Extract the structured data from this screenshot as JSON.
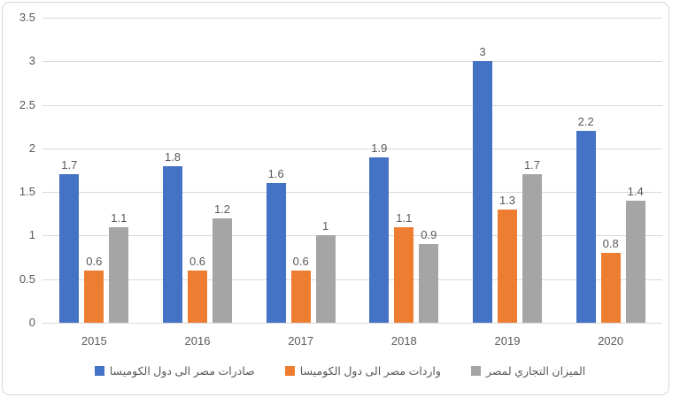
{
  "chart_data": {
    "type": "bar",
    "title": "",
    "categories": [
      "2015",
      "2016",
      "2017",
      "2018",
      "2019",
      "2020"
    ],
    "series": [
      {
        "name": "صادرات مصر الى دول الكوميسا",
        "color": "#4472C4",
        "values": [
          1.7,
          1.8,
          1.6,
          1.9,
          3,
          2.2
        ]
      },
      {
        "name": "واردات مصر الى دول الكوميسا",
        "color": "#ED7D31",
        "values": [
          0.6,
          0.6,
          0.6,
          1.1,
          1.3,
          0.8
        ]
      },
      {
        "name": "الميزان التجاري لمصر",
        "color": "#A5A5A5",
        "values": [
          1.1,
          1.2,
          1,
          0.9,
          1.7,
          1.4
        ]
      }
    ],
    "xlabel": "",
    "ylabel": "",
    "ylim": [
      0,
      3.5
    ],
    "yticks": [
      0,
      0.5,
      1,
      1.5,
      2,
      2.5,
      3,
      3.5
    ],
    "grid": true,
    "data_labels": true,
    "legend_position": "bottom",
    "legend_direction": "rtl"
  },
  "colors": {
    "gridline": "#d9d9d9",
    "border": "#d9d9d9",
    "text": "#595959",
    "background": "#ffffff"
  }
}
